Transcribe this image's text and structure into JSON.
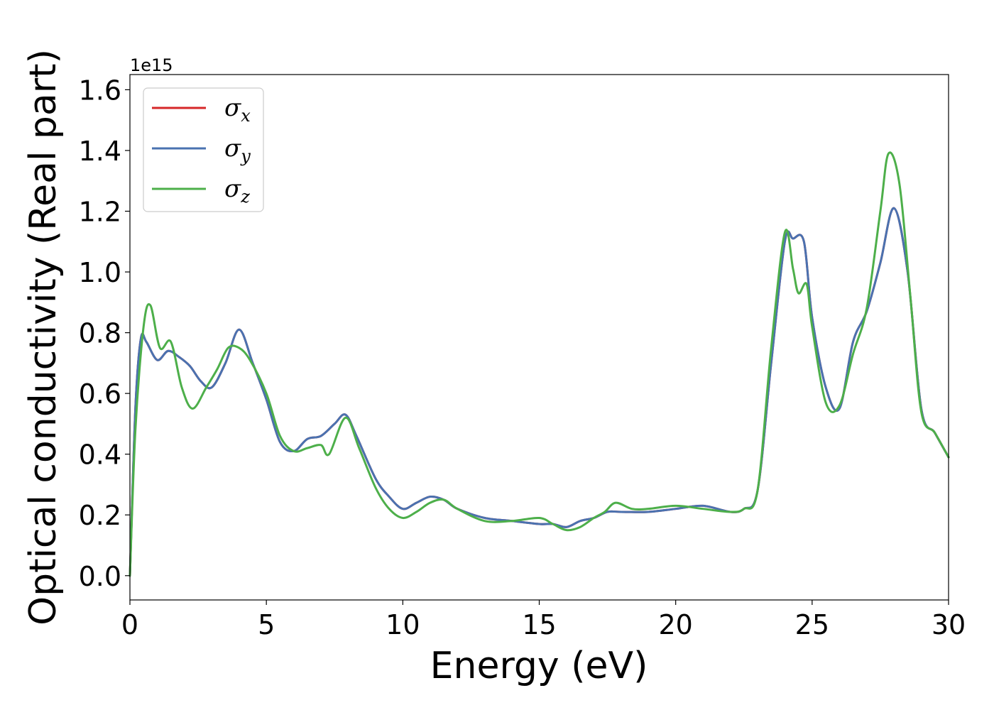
{
  "chart_data": {
    "type": "line",
    "xlabel": "Energy (eV)",
    "ylabel": "Optical conductivity (Real part)",
    "y_offset_label": "1e15",
    "xlim": [
      0,
      30
    ],
    "ylim": [
      -0.08,
      1.65
    ],
    "x_ticks": [
      0,
      5,
      10,
      15,
      20,
      25,
      30
    ],
    "x_tick_labels": [
      "0",
      "5",
      "10",
      "15",
      "20",
      "25",
      "30"
    ],
    "y_ticks": [
      0.0,
      0.2,
      0.4,
      0.6,
      0.8,
      1.0,
      1.2,
      1.4,
      1.6
    ],
    "y_tick_labels": [
      "0.0",
      "0.2",
      "0.4",
      "0.6",
      "0.8",
      "1.0",
      "1.2",
      "1.4",
      "1.6"
    ],
    "grid": false,
    "legend_position": "top-left",
    "series": [
      {
        "name": "σx",
        "symbol": "σ",
        "subscript": "x",
        "color": "#d62728",
        "x": [
          0,
          0.2,
          0.4,
          0.6,
          1.0,
          1.4,
          1.8,
          2.2,
          2.6,
          3.0,
          3.5,
          4.0,
          4.5,
          5.0,
          5.5,
          6.0,
          6.5,
          7.0,
          7.5,
          7.9,
          8.3,
          9.0,
          9.5,
          10.0,
          10.5,
          11.0,
          11.5,
          12.0,
          13.0,
          14.0,
          15.0,
          15.5,
          16.0,
          16.5,
          17.0,
          17.5,
          18.0,
          19.0,
          20.0,
          21.0,
          22.0,
          22.5,
          23.0,
          23.5,
          24.0,
          24.3,
          24.7,
          25.0,
          25.5,
          26.0,
          26.5,
          27.0,
          27.5,
          28.0,
          28.5,
          29.0,
          29.5,
          30.0
        ],
        "values": [
          0.0,
          0.55,
          0.78,
          0.77,
          0.71,
          0.74,
          0.72,
          0.69,
          0.64,
          0.62,
          0.7,
          0.81,
          0.7,
          0.58,
          0.44,
          0.41,
          0.45,
          0.46,
          0.5,
          0.53,
          0.46,
          0.32,
          0.26,
          0.22,
          0.24,
          0.26,
          0.25,
          0.22,
          0.19,
          0.18,
          0.17,
          0.17,
          0.16,
          0.18,
          0.19,
          0.21,
          0.21,
          0.21,
          0.22,
          0.23,
          0.21,
          0.22,
          0.28,
          0.7,
          1.1,
          1.11,
          1.1,
          0.85,
          0.62,
          0.55,
          0.77,
          0.87,
          1.03,
          1.21,
          1.0,
          0.55,
          0.47,
          0.39
        ]
      },
      {
        "name": "σy",
        "symbol": "σ",
        "subscript": "y",
        "color": "#4a72b0",
        "x": [
          0,
          0.2,
          0.4,
          0.6,
          1.0,
          1.4,
          1.8,
          2.2,
          2.6,
          3.0,
          3.5,
          4.0,
          4.5,
          5.0,
          5.5,
          6.0,
          6.5,
          7.0,
          7.5,
          7.9,
          8.3,
          9.0,
          9.5,
          10.0,
          10.5,
          11.0,
          11.5,
          12.0,
          13.0,
          14.0,
          15.0,
          15.5,
          16.0,
          16.5,
          17.0,
          17.5,
          18.0,
          19.0,
          20.0,
          21.0,
          22.0,
          22.5,
          23.0,
          23.5,
          24.0,
          24.3,
          24.7,
          25.0,
          25.5,
          26.0,
          26.5,
          27.0,
          27.5,
          28.0,
          28.5,
          29.0,
          29.5,
          30.0
        ],
        "values": [
          0.0,
          0.55,
          0.78,
          0.77,
          0.71,
          0.74,
          0.72,
          0.69,
          0.64,
          0.62,
          0.7,
          0.81,
          0.7,
          0.58,
          0.44,
          0.41,
          0.45,
          0.46,
          0.5,
          0.53,
          0.46,
          0.32,
          0.26,
          0.22,
          0.24,
          0.26,
          0.25,
          0.22,
          0.19,
          0.18,
          0.17,
          0.17,
          0.16,
          0.18,
          0.19,
          0.21,
          0.21,
          0.21,
          0.22,
          0.23,
          0.21,
          0.22,
          0.28,
          0.7,
          1.1,
          1.11,
          1.1,
          0.85,
          0.62,
          0.55,
          0.77,
          0.87,
          1.03,
          1.21,
          1.0,
          0.55,
          0.47,
          0.39
        ]
      },
      {
        "name": "σz",
        "symbol": "σ",
        "subscript": "z",
        "color": "#4daf4a",
        "x": [
          0,
          0.2,
          0.5,
          0.75,
          1.1,
          1.5,
          1.9,
          2.3,
          2.8,
          3.2,
          3.6,
          4.0,
          4.4,
          5.0,
          5.5,
          6.0,
          6.5,
          7.0,
          7.3,
          7.9,
          8.4,
          9.0,
          9.5,
          10.0,
          10.5,
          11.0,
          11.5,
          12.0,
          13.0,
          14.0,
          15.0,
          15.5,
          16.0,
          16.5,
          17.0,
          17.4,
          17.8,
          18.4,
          19.0,
          20.0,
          21.0,
          22.0,
          22.5,
          23.0,
          23.5,
          24.0,
          24.3,
          24.5,
          24.8,
          25.0,
          25.5,
          26.0,
          26.5,
          27.0,
          27.5,
          27.8,
          28.2,
          28.6,
          29.0,
          29.5,
          30.0
        ],
        "values": [
          0.0,
          0.48,
          0.82,
          0.89,
          0.75,
          0.77,
          0.62,
          0.55,
          0.62,
          0.68,
          0.75,
          0.75,
          0.71,
          0.6,
          0.46,
          0.41,
          0.42,
          0.43,
          0.4,
          0.52,
          0.42,
          0.29,
          0.22,
          0.19,
          0.21,
          0.24,
          0.25,
          0.22,
          0.18,
          0.18,
          0.19,
          0.17,
          0.15,
          0.16,
          0.19,
          0.21,
          0.24,
          0.22,
          0.22,
          0.23,
          0.22,
          0.21,
          0.22,
          0.28,
          0.75,
          1.13,
          1.01,
          0.93,
          0.96,
          0.82,
          0.57,
          0.56,
          0.73,
          0.88,
          1.2,
          1.39,
          1.29,
          0.92,
          0.54,
          0.47,
          0.39
        ]
      }
    ]
  }
}
